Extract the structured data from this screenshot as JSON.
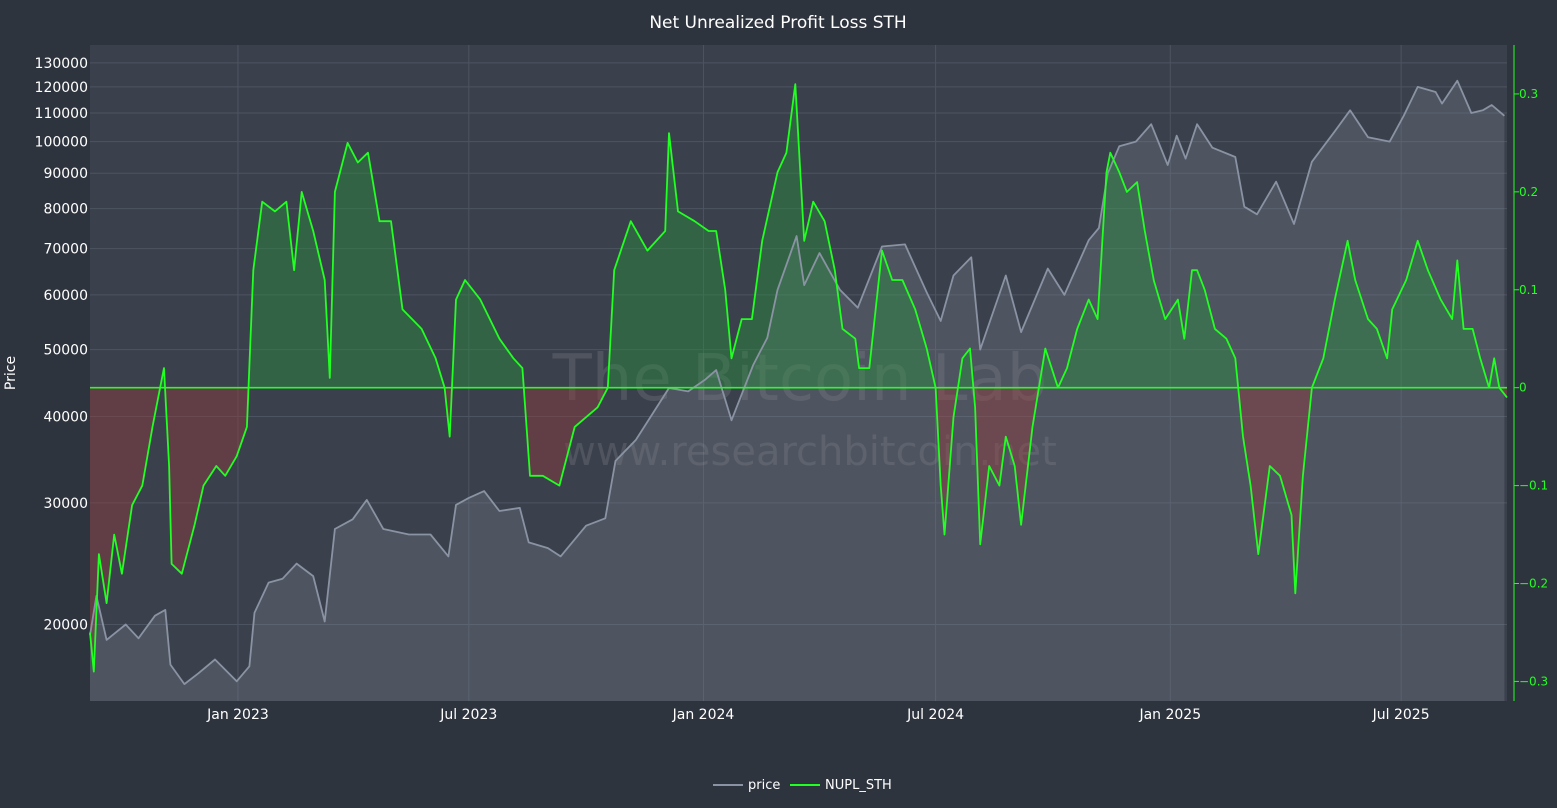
{
  "chart_data": {
    "type": "line",
    "title": "Net Unrealized Profit Loss STH",
    "ylabel": "Price",
    "y_scale": "log",
    "ylim": [
      15500,
      138000
    ],
    "y_ticks": [
      20000,
      30000,
      40000,
      50000,
      60000,
      70000,
      80000,
      90000,
      100000,
      110000,
      120000,
      130000
    ],
    "y2lim": [
      -0.32,
      0.35
    ],
    "y2_ticks": [
      -0.3,
      -0.2,
      -0.1,
      0,
      0.1,
      0.2,
      0.3
    ],
    "y2_tick_labels": [
      "−0.3",
      "−0.2",
      "−0.1",
      "0",
      "0.1",
      "0.2",
      "0.3"
    ],
    "xlim": [
      "2022-09-07",
      "2025-09-22"
    ],
    "x_ticks": [
      "2023-01-01",
      "2023-07-01",
      "2024-01-01",
      "2024-07-01",
      "2025-01-01",
      "2025-07-01"
    ],
    "x_tick_labels": [
      "Jan 2023",
      "Jul 2023",
      "Jan 2024",
      "Jul 2024",
      "Jan 2025",
      "Jul 2025"
    ],
    "grid": true,
    "legend_position": "bottom-center",
    "watermark": [
      "The Bitcoin Lab",
      "www.researchbitcoin.net"
    ],
    "colors": {
      "price": "#8a93a3",
      "nupl": "#22ff22",
      "fill_positive": "rgba(40,150,60,0.40)",
      "fill_negative": "rgba(150,60,60,0.42)"
    },
    "series": [
      {
        "name": "price",
        "axis": "left",
        "points": [
          [
            "2022-09-07",
            19300
          ],
          [
            "2022-09-12",
            22000
          ],
          [
            "2022-09-20",
            19000
          ],
          [
            "2022-10-05",
            20000
          ],
          [
            "2022-10-15",
            19100
          ],
          [
            "2022-10-28",
            20600
          ],
          [
            "2022-11-05",
            21000
          ],
          [
            "2022-11-09",
            17500
          ],
          [
            "2022-11-20",
            16400
          ],
          [
            "2022-12-01",
            17000
          ],
          [
            "2022-12-14",
            17800
          ],
          [
            "2022-12-31",
            16550
          ],
          [
            "2023-01-10",
            17400
          ],
          [
            "2023-01-14",
            20800
          ],
          [
            "2023-01-25",
            23000
          ],
          [
            "2023-02-05",
            23300
          ],
          [
            "2023-02-16",
            24500
          ],
          [
            "2023-03-01",
            23500
          ],
          [
            "2023-03-10",
            20200
          ],
          [
            "2023-03-18",
            27500
          ],
          [
            "2023-04-01",
            28400
          ],
          [
            "2023-04-12",
            30300
          ],
          [
            "2023-04-25",
            27500
          ],
          [
            "2023-05-15",
            27000
          ],
          [
            "2023-06-01",
            27000
          ],
          [
            "2023-06-15",
            25100
          ],
          [
            "2023-06-21",
            29800
          ],
          [
            "2023-07-01",
            30500
          ],
          [
            "2023-07-13",
            31200
          ],
          [
            "2023-07-25",
            29200
          ],
          [
            "2023-08-10",
            29500
          ],
          [
            "2023-08-17",
            26300
          ],
          [
            "2023-09-01",
            25800
          ],
          [
            "2023-09-11",
            25100
          ],
          [
            "2023-10-01",
            27800
          ],
          [
            "2023-10-16",
            28500
          ],
          [
            "2023-10-24",
            34500
          ],
          [
            "2023-11-09",
            37000
          ],
          [
            "2023-12-05",
            44000
          ],
          [
            "2023-12-20",
            43500
          ],
          [
            "2024-01-02",
            45200
          ],
          [
            "2024-01-11",
            46700
          ],
          [
            "2024-01-23",
            39500
          ],
          [
            "2024-02-09",
            47500
          ],
          [
            "2024-02-20",
            52000
          ],
          [
            "2024-02-28",
            61000
          ],
          [
            "2024-03-14",
            73000
          ],
          [
            "2024-03-20",
            62000
          ],
          [
            "2024-04-01",
            69000
          ],
          [
            "2024-04-17",
            61000
          ],
          [
            "2024-05-01",
            57500
          ],
          [
            "2024-05-20",
            70500
          ],
          [
            "2024-06-07",
            71000
          ],
          [
            "2024-06-24",
            60500
          ],
          [
            "2024-07-05",
            55000
          ],
          [
            "2024-07-15",
            64000
          ],
          [
            "2024-07-29",
            68000
          ],
          [
            "2024-08-05",
            50000
          ],
          [
            "2024-08-25",
            64000
          ],
          [
            "2024-09-06",
            53000
          ],
          [
            "2024-09-27",
            65500
          ],
          [
            "2024-10-10",
            60000
          ],
          [
            "2024-10-29",
            72000
          ],
          [
            "2024-11-06",
            75000
          ],
          [
            "2024-11-13",
            90000
          ],
          [
            "2024-11-22",
            98500
          ],
          [
            "2024-12-05",
            100000
          ],
          [
            "2024-12-17",
            106000
          ],
          [
            "2024-12-30",
            92500
          ],
          [
            "2025-01-06",
            102000
          ],
          [
            "2025-01-13",
            94500
          ],
          [
            "2025-01-22",
            106000
          ],
          [
            "2025-02-03",
            98000
          ],
          [
            "2025-02-21",
            95000
          ],
          [
            "2025-02-28",
            80500
          ],
          [
            "2025-03-10",
            78500
          ],
          [
            "2025-03-25",
            87500
          ],
          [
            "2025-04-08",
            76000
          ],
          [
            "2025-04-22",
            93500
          ],
          [
            "2025-05-10",
            103500
          ],
          [
            "2025-05-22",
            111000
          ],
          [
            "2025-06-05",
            101500
          ],
          [
            "2025-06-22",
            100000
          ],
          [
            "2025-07-03",
            109000
          ],
          [
            "2025-07-14",
            120000
          ],
          [
            "2025-07-28",
            118000
          ],
          [
            "2025-08-02",
            113500
          ],
          [
            "2025-08-14",
            122500
          ],
          [
            "2025-08-25",
            110000
          ],
          [
            "2025-09-03",
            111000
          ],
          [
            "2025-09-10",
            113000
          ],
          [
            "2025-09-20",
            109000
          ]
        ]
      },
      {
        "name": "NUPL_STH",
        "axis": "right",
        "points": [
          [
            "2022-09-07",
            -0.25
          ],
          [
            "2022-09-10",
            -0.29
          ],
          [
            "2022-09-14",
            -0.17
          ],
          [
            "2022-09-20",
            -0.22
          ],
          [
            "2022-09-26",
            -0.15
          ],
          [
            "2022-10-02",
            -0.19
          ],
          [
            "2022-10-10",
            -0.12
          ],
          [
            "2022-10-18",
            -0.1
          ],
          [
            "2022-10-26",
            -0.04
          ],
          [
            "2022-11-01",
            0.0
          ],
          [
            "2022-11-04",
            0.02
          ],
          [
            "2022-11-08",
            -0.08
          ],
          [
            "2022-11-10",
            -0.18
          ],
          [
            "2022-11-18",
            -0.19
          ],
          [
            "2022-11-28",
            -0.14
          ],
          [
            "2022-12-05",
            -0.1
          ],
          [
            "2022-12-15",
            -0.08
          ],
          [
            "2022-12-22",
            -0.09
          ],
          [
            "2022-12-31",
            -0.07
          ],
          [
            "2023-01-08",
            -0.04
          ],
          [
            "2023-01-13",
            0.12
          ],
          [
            "2023-01-20",
            0.19
          ],
          [
            "2023-01-30",
            0.18
          ],
          [
            "2023-02-08",
            0.19
          ],
          [
            "2023-02-14",
            0.12
          ],
          [
            "2023-02-20",
            0.2
          ],
          [
            "2023-03-01",
            0.16
          ],
          [
            "2023-03-10",
            0.11
          ],
          [
            "2023-03-14",
            0.01
          ],
          [
            "2023-03-18",
            0.2
          ],
          [
            "2023-03-28",
            0.25
          ],
          [
            "2023-04-05",
            0.23
          ],
          [
            "2023-04-13",
            0.24
          ],
          [
            "2023-04-22",
            0.17
          ],
          [
            "2023-05-01",
            0.17
          ],
          [
            "2023-05-10",
            0.08
          ],
          [
            "2023-05-25",
            0.06
          ],
          [
            "2023-06-05",
            0.03
          ],
          [
            "2023-06-12",
            0.0
          ],
          [
            "2023-06-16",
            -0.05
          ],
          [
            "2023-06-21",
            0.09
          ],
          [
            "2023-06-28",
            0.11
          ],
          [
            "2023-07-10",
            0.09
          ],
          [
            "2023-07-25",
            0.05
          ],
          [
            "2023-08-05",
            0.03
          ],
          [
            "2023-08-12",
            0.02
          ],
          [
            "2023-08-18",
            -0.09
          ],
          [
            "2023-08-28",
            -0.09
          ],
          [
            "2023-09-10",
            -0.1
          ],
          [
            "2023-09-22",
            -0.04
          ],
          [
            "2023-10-10",
            -0.02
          ],
          [
            "2023-10-18",
            0.0
          ],
          [
            "2023-10-23",
            0.12
          ],
          [
            "2023-11-05",
            0.17
          ],
          [
            "2023-11-18",
            0.14
          ],
          [
            "2023-12-02",
            0.16
          ],
          [
            "2023-12-05",
            0.26
          ],
          [
            "2023-12-12",
            0.18
          ],
          [
            "2023-12-25",
            0.17
          ],
          [
            "2024-01-05",
            0.16
          ],
          [
            "2024-01-11",
            0.16
          ],
          [
            "2024-01-18",
            0.1
          ],
          [
            "2024-01-23",
            0.03
          ],
          [
            "2024-01-31",
            0.07
          ],
          [
            "2024-02-08",
            0.07
          ],
          [
            "2024-02-16",
            0.15
          ],
          [
            "2024-02-28",
            0.22
          ],
          [
            "2024-03-06",
            0.24
          ],
          [
            "2024-03-13",
            0.31
          ],
          [
            "2024-03-20",
            0.15
          ],
          [
            "2024-03-27",
            0.19
          ],
          [
            "2024-04-05",
            0.17
          ],
          [
            "2024-04-13",
            0.12
          ],
          [
            "2024-04-19",
            0.06
          ],
          [
            "2024-04-29",
            0.05
          ],
          [
            "2024-05-02",
            0.02
          ],
          [
            "2024-05-10",
            0.02
          ],
          [
            "2024-05-20",
            0.14
          ],
          [
            "2024-05-28",
            0.11
          ],
          [
            "2024-06-05",
            0.11
          ],
          [
            "2024-06-15",
            0.08
          ],
          [
            "2024-06-24",
            0.04
          ],
          [
            "2024-07-01",
            0.0
          ],
          [
            "2024-07-05",
            -0.1
          ],
          [
            "2024-07-08",
            -0.15
          ],
          [
            "2024-07-15",
            -0.03
          ],
          [
            "2024-07-22",
            0.03
          ],
          [
            "2024-07-28",
            0.04
          ],
          [
            "2024-08-01",
            -0.02
          ],
          [
            "2024-08-05",
            -0.16
          ],
          [
            "2024-08-12",
            -0.08
          ],
          [
            "2024-08-20",
            -0.1
          ],
          [
            "2024-08-25",
            -0.05
          ],
          [
            "2024-09-01",
            -0.08
          ],
          [
            "2024-09-06",
            -0.14
          ],
          [
            "2024-09-15",
            -0.04
          ],
          [
            "2024-09-25",
            0.04
          ],
          [
            "2024-10-05",
            0.0
          ],
          [
            "2024-10-12",
            0.02
          ],
          [
            "2024-10-20",
            0.06
          ],
          [
            "2024-10-29",
            0.09
          ],
          [
            "2024-11-05",
            0.07
          ],
          [
            "2024-11-12",
            0.22
          ],
          [
            "2024-11-15",
            0.24
          ],
          [
            "2024-11-22",
            0.22
          ],
          [
            "2024-11-28",
            0.2
          ],
          [
            "2024-12-06",
            0.21
          ],
          [
            "2024-12-12",
            0.16
          ],
          [
            "2024-12-19",
            0.11
          ],
          [
            "2024-12-28",
            0.07
          ],
          [
            "2025-01-07",
            0.09
          ],
          [
            "2025-01-12",
            0.05
          ],
          [
            "2025-01-18",
            0.12
          ],
          [
            "2025-01-22",
            0.12
          ],
          [
            "2025-01-28",
            0.1
          ],
          [
            "2025-02-05",
            0.06
          ],
          [
            "2025-02-14",
            0.05
          ],
          [
            "2025-02-21",
            0.03
          ],
          [
            "2025-02-27",
            -0.05
          ],
          [
            "2025-03-05",
            -0.1
          ],
          [
            "2025-03-11",
            -0.17
          ],
          [
            "2025-03-20",
            -0.08
          ],
          [
            "2025-03-28",
            -0.09
          ],
          [
            "2025-04-06",
            -0.13
          ],
          [
            "2025-04-09",
            -0.21
          ],
          [
            "2025-04-15",
            -0.09
          ],
          [
            "2025-04-22",
            0.0
          ],
          [
            "2025-05-01",
            0.03
          ],
          [
            "2025-05-10",
            0.09
          ],
          [
            "2025-05-20",
            0.15
          ],
          [
            "2025-05-26",
            0.11
          ],
          [
            "2025-06-05",
            0.07
          ],
          [
            "2025-06-12",
            0.06
          ],
          [
            "2025-06-20",
            0.03
          ],
          [
            "2025-06-24",
            0.08
          ],
          [
            "2025-07-05",
            0.11
          ],
          [
            "2025-07-14",
            0.15
          ],
          [
            "2025-07-22",
            0.12
          ],
          [
            "2025-08-01",
            0.09
          ],
          [
            "2025-08-10",
            0.07
          ],
          [
            "2025-08-14",
            0.13
          ],
          [
            "2025-08-19",
            0.06
          ],
          [
            "2025-08-26",
            0.06
          ],
          [
            "2025-09-01",
            0.03
          ],
          [
            "2025-09-08",
            0.0
          ],
          [
            "2025-09-12",
            0.03
          ],
          [
            "2025-09-16",
            0.0
          ],
          [
            "2025-09-22",
            -0.01
          ]
        ]
      }
    ]
  }
}
